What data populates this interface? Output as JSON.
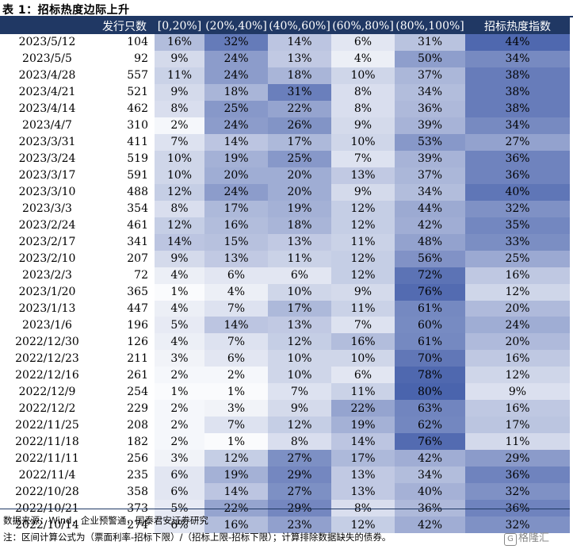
{
  "title": "表 1：招标热度边际上升",
  "headers": [
    "",
    "发行只数",
    "[0,20%]",
    "(20%,40%]",
    "(40%,60%]",
    "(60%,80%]",
    "(80%,100%]",
    "招标热度指数"
  ],
  "rows": [
    [
      "2023/5/12",
      "104",
      "16%",
      "32%",
      "14%",
      "6%",
      "31%",
      "44%"
    ],
    [
      "2023/5/5",
      "92",
      "9%",
      "24%",
      "13%",
      "4%",
      "50%",
      "34%"
    ],
    [
      "2023/4/28",
      "557",
      "11%",
      "24%",
      "18%",
      "10%",
      "37%",
      "38%"
    ],
    [
      "2023/4/21",
      "521",
      "9%",
      "18%",
      "31%",
      "8%",
      "34%",
      "38%"
    ],
    [
      "2023/4/14",
      "462",
      "8%",
      "25%",
      "22%",
      "8%",
      "36%",
      "38%"
    ],
    [
      "2023/4/7",
      "310",
      "2%",
      "24%",
      "26%",
      "9%",
      "39%",
      "34%"
    ],
    [
      "2023/3/31",
      "411",
      "7%",
      "14%",
      "17%",
      "10%",
      "53%",
      "27%"
    ],
    [
      "2023/3/24",
      "519",
      "10%",
      "19%",
      "25%",
      "7%",
      "39%",
      "36%"
    ],
    [
      "2023/3/17",
      "591",
      "10%",
      "20%",
      "20%",
      "13%",
      "37%",
      "36%"
    ],
    [
      "2023/3/10",
      "488",
      "12%",
      "24%",
      "20%",
      "9%",
      "34%",
      "40%"
    ],
    [
      "2023/3/3",
      "354",
      "8%",
      "17%",
      "19%",
      "12%",
      "44%",
      "32%"
    ],
    [
      "2023/2/24",
      "461",
      "12%",
      "16%",
      "18%",
      "12%",
      "42%",
      "35%"
    ],
    [
      "2023/2/17",
      "341",
      "14%",
      "15%",
      "13%",
      "11%",
      "48%",
      "33%"
    ],
    [
      "2023/2/10",
      "207",
      "9%",
      "13%",
      "11%",
      "12%",
      "56%",
      "25%"
    ],
    [
      "2023/2/3",
      "72",
      "4%",
      "6%",
      "6%",
      "12%",
      "72%",
      "16%"
    ],
    [
      "2023/1/20",
      "365",
      "1%",
      "4%",
      "10%",
      "9%",
      "76%",
      "12%"
    ],
    [
      "2023/1/13",
      "447",
      "4%",
      "7%",
      "17%",
      "11%",
      "61%",
      "20%"
    ],
    [
      "2023/1/6",
      "196",
      "5%",
      "14%",
      "13%",
      "7%",
      "60%",
      "24%"
    ],
    [
      "2022/12/30",
      "126",
      "4%",
      "7%",
      "12%",
      "16%",
      "61%",
      "20%"
    ],
    [
      "2022/12/23",
      "211",
      "3%",
      "6%",
      "10%",
      "10%",
      "70%",
      "16%"
    ],
    [
      "2022/12/16",
      "261",
      "2%",
      "2%",
      "10%",
      "6%",
      "78%",
      "12%"
    ],
    [
      "2022/12/9",
      "254",
      "1%",
      "1%",
      "7%",
      "11%",
      "80%",
      "9%"
    ],
    [
      "2022/12/2",
      "229",
      "2%",
      "3%",
      "9%",
      "22%",
      "63%",
      "16%"
    ],
    [
      "2022/11/25",
      "208",
      "2%",
      "7%",
      "12%",
      "19%",
      "62%",
      "17%"
    ],
    [
      "2022/11/18",
      "182",
      "2%",
      "1%",
      "8%",
      "14%",
      "76%",
      "11%"
    ],
    [
      "2022/11/11",
      "256",
      "3%",
      "12%",
      "27%",
      "17%",
      "42%",
      "29%"
    ],
    [
      "2022/11/4",
      "235",
      "6%",
      "19%",
      "29%",
      "13%",
      "34%",
      "36%"
    ],
    [
      "2022/10/28",
      "358",
      "6%",
      "14%",
      "27%",
      "13%",
      "40%",
      "32%"
    ],
    [
      "2022/10/21",
      "373",
      "5%",
      "22%",
      "29%",
      "8%",
      "36%",
      "36%"
    ],
    [
      "2022/10/14",
      "274",
      "6%",
      "16%",
      "23%",
      "12%",
      "42%",
      "32%"
    ]
  ],
  "source": "数据来源：Wind，企业预警通，国泰君安证券研究",
  "note": "注：区间计算公式为（票面利率-招标下限）/（招标上限-招标下限）；计算排除数据缺失的债券。",
  "watermark": "格隆汇",
  "colors": {
    "header_bg": "#203864",
    "heat_low": "#ffffff",
    "heat_high": "#3f5aa8"
  }
}
